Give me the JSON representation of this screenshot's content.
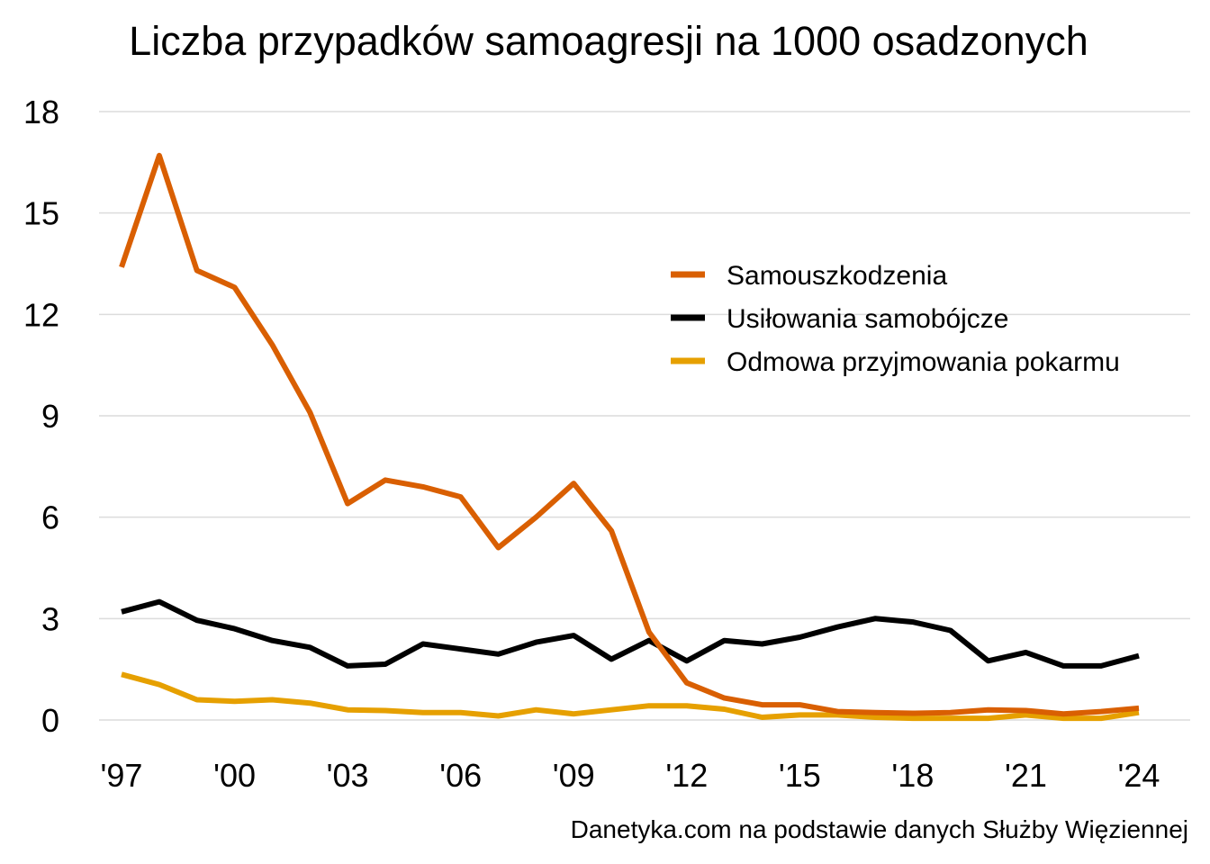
{
  "chart_data": {
    "type": "line",
    "title": "Liczba przypadków samoagresji na 1000 osadzonych",
    "xlabel": "",
    "ylabel": "",
    "x": [
      1997,
      1998,
      1999,
      2000,
      2001,
      2002,
      2003,
      2004,
      2005,
      2006,
      2007,
      2008,
      2009,
      2010,
      2011,
      2012,
      2013,
      2014,
      2015,
      2016,
      2017,
      2018,
      2019,
      2020,
      2021,
      2022,
      2023,
      2024
    ],
    "xlim": [
      1997,
      2024
    ],
    "ylim": [
      0,
      18
    ],
    "y_ticks": [
      0,
      3,
      6,
      9,
      12,
      15,
      18
    ],
    "y_tick_labels": [
      "0",
      "3",
      "6",
      "9",
      "12",
      "15",
      "18"
    ],
    "x_ticks": [
      1997,
      2000,
      2003,
      2006,
      2009,
      2012,
      2015,
      2018,
      2021,
      2024
    ],
    "x_tick_labels": [
      "'97",
      "'00",
      "'03",
      "'06",
      "'09",
      "'12",
      "'15",
      "'18",
      "'21",
      "'24"
    ],
    "grid": true,
    "legend_position": "top-right",
    "series": [
      {
        "name": "Samouszkodzenia",
        "color": "#D95F02",
        "values": [
          13.4,
          16.7,
          13.3,
          12.8,
          11.1,
          9.1,
          6.4,
          7.1,
          6.9,
          6.6,
          5.1,
          6.0,
          7.0,
          5.6,
          2.6,
          1.1,
          0.65,
          0.45,
          0.45,
          0.25,
          0.22,
          0.2,
          0.22,
          0.3,
          0.28,
          0.18,
          0.25,
          0.35
        ]
      },
      {
        "name": "Usiłowania samobójcze",
        "color": "#000000",
        "values": [
          3.2,
          3.5,
          2.95,
          2.7,
          2.35,
          2.15,
          1.6,
          1.65,
          2.25,
          2.1,
          1.95,
          2.3,
          2.5,
          1.8,
          2.35,
          1.75,
          2.35,
          2.25,
          2.45,
          2.75,
          3.0,
          2.9,
          2.65,
          1.75,
          2.0,
          1.6,
          1.6,
          1.9
        ]
      },
      {
        "name": "Odmowa przyjmowania pokarmu",
        "color": "#E6A000",
        "values": [
          1.35,
          1.05,
          0.6,
          0.55,
          0.6,
          0.5,
          0.3,
          0.28,
          0.22,
          0.22,
          0.12,
          0.3,
          0.18,
          0.3,
          0.42,
          0.42,
          0.32,
          0.08,
          0.15,
          0.15,
          0.08,
          0.05,
          0.05,
          0.05,
          0.15,
          0.05,
          0.05,
          0.22
        ]
      }
    ],
    "source": "Danetyka.com na podstawie danych Służby Więziennej"
  }
}
